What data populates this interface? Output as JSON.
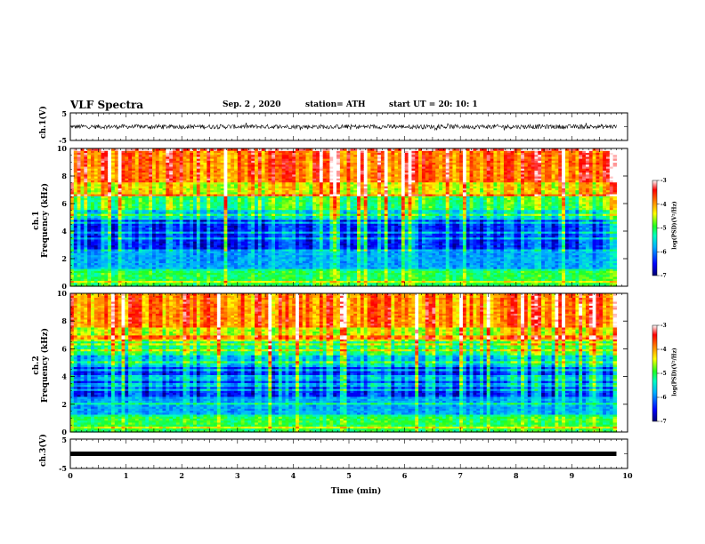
{
  "header": {
    "title": "VLF Spectra",
    "date": "Sep. 2 , 2020",
    "station": "station= ATH",
    "start_ut": "start UT = 20: 10: 1"
  },
  "chart_data": [
    {
      "type": "line",
      "panel": "ch1-waveform",
      "ylabel": "ch.1(V)",
      "yticks": [
        "5",
        "-5"
      ],
      "ylim": [
        -5,
        5
      ],
      "x_range_min": [
        0,
        9.8
      ],
      "description_values": "noisy waveform fluctuating approximately between -1 and 1 V"
    },
    {
      "type": "heatmap",
      "panel": "ch1-spectrogram",
      "ylabel": "ch.1\nFrequency (kHz)",
      "ylabel_lines": [
        "ch.1",
        "Frequency (kHz)"
      ],
      "yticks": [
        0,
        2,
        4,
        6,
        8,
        10
      ],
      "ylim": [
        0,
        10
      ],
      "colorbar": {
        "label": "log(PSD)(V²/Hz)",
        "ticks": [
          "-3",
          "-4",
          "-5",
          "-6",
          "-7"
        ],
        "range": [
          -7,
          -3
        ]
      }
    },
    {
      "type": "heatmap",
      "panel": "ch2-spectrogram",
      "ylabel_lines": [
        "ch.2",
        "Frequency (kHz)"
      ],
      "yticks": [
        0,
        2,
        4,
        6,
        8,
        10
      ],
      "ylim": [
        0,
        10
      ],
      "colorbar": {
        "label": "log(PSD)(V²/Hz)",
        "ticks": [
          "-3",
          "-4",
          "-5",
          "-6",
          "-7"
        ],
        "range": [
          -7,
          -3
        ]
      }
    },
    {
      "type": "line",
      "panel": "ch3-waveform",
      "ylabel": "ch.3(V)",
      "yticks": [
        "5",
        "-5"
      ],
      "ylim": [
        -5,
        5
      ],
      "x": [
        0,
        9.8
      ],
      "y": [
        0,
        0
      ]
    }
  ],
  "xaxis": {
    "label": "Time (min)",
    "ticks": [
      "0",
      "1",
      "2",
      "3",
      "4",
      "5",
      "6",
      "7",
      "8",
      "9",
      "10"
    ],
    "range": [
      0,
      10
    ]
  },
  "colors": {
    "cmap": [
      "#000080",
      "#0000ff",
      "#00a0ff",
      "#00ffff",
      "#00ff40",
      "#ffff00",
      "#ff8000",
      "#ff0000",
      "#ffffff"
    ]
  }
}
